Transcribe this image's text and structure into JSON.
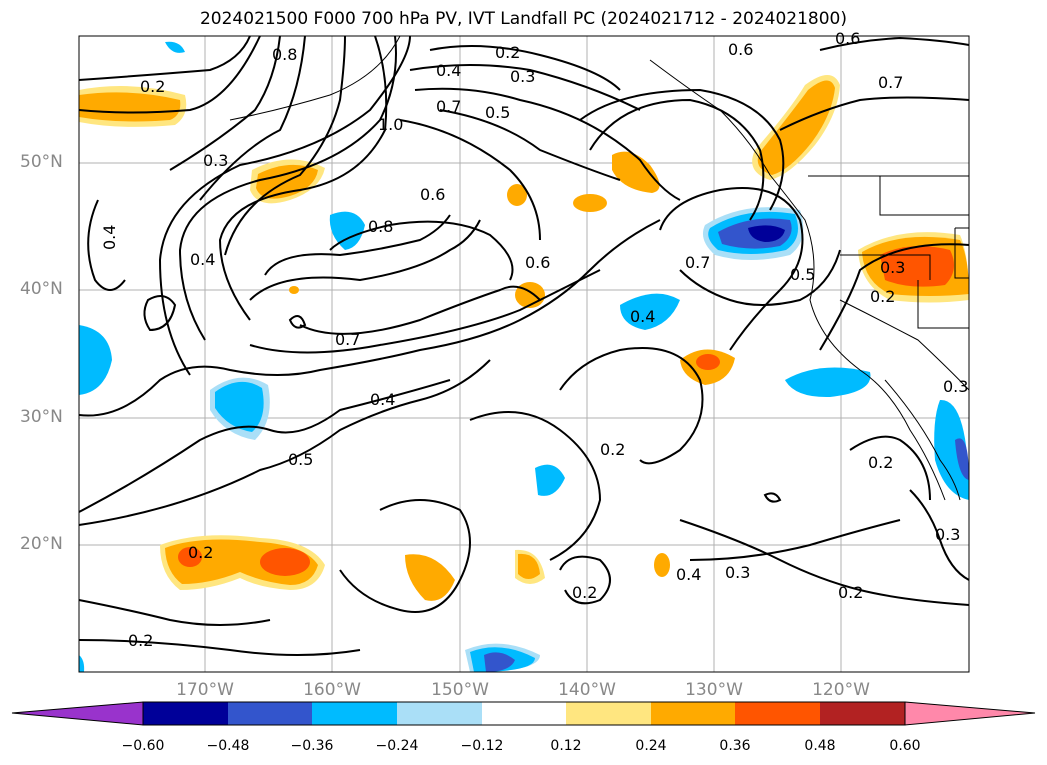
{
  "title": "2024021500 F000 700 hPa PV, IVT Landfall PC (2024021712 - 2024021800)",
  "axes": {
    "lat_labels": [
      "50°N",
      "40°N",
      "30°N",
      "20°N"
    ],
    "lon_labels": [
      "170°W",
      "160°W",
      "150°W",
      "140°W",
      "130°W",
      "120°W"
    ]
  },
  "contour_labels": [
    "0.2",
    "0.3",
    "0.4",
    "0.5",
    "0.6",
    "0.7",
    "0.8",
    "1.0"
  ],
  "colorbar": {
    "ticks": [
      "−0.60",
      "−0.48",
      "−0.36",
      "−0.24",
      "−0.12",
      "0.12",
      "0.24",
      "0.36",
      "0.48",
      "0.60"
    ],
    "colors": [
      "#9933cc",
      "#000099",
      "#3355cc",
      "#00bbff",
      "#aadff7",
      "#ffffff",
      "#ffe680",
      "#ffaa00",
      "#ff5500",
      "#b22222",
      "#ff88aa"
    ]
  },
  "colors": {
    "orange": "#ffaa00",
    "light_yellow": "#ffe680",
    "red_orange": "#ff5500",
    "dark_blue": "#000099",
    "medium_blue": "#3355cc",
    "cyan": "#00bbff",
    "light_blue": "#aadff7",
    "grid": "#b0b0b0",
    "tick_text": "#888888"
  }
}
